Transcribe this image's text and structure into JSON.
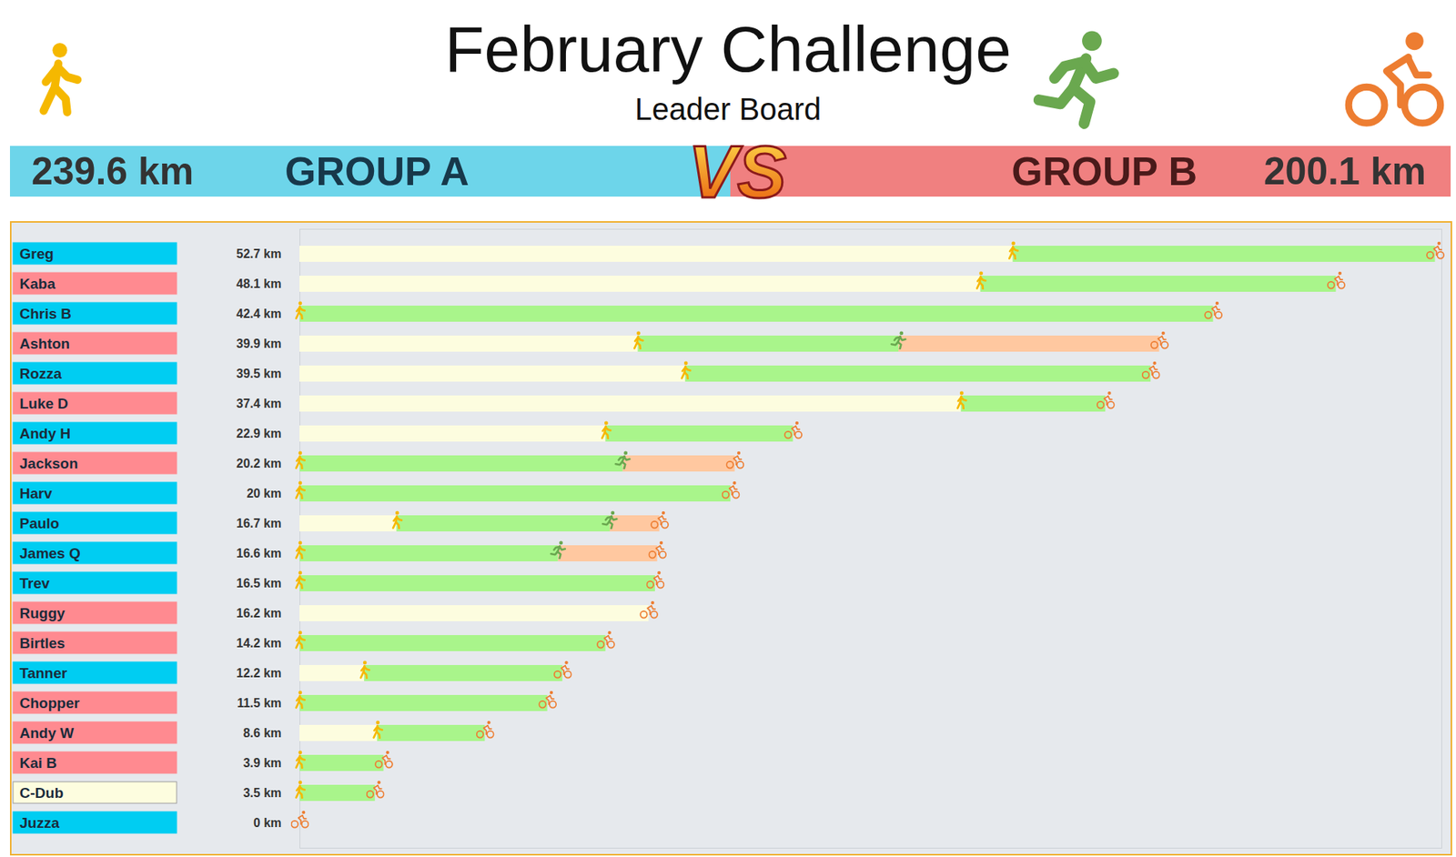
{
  "chart_data": {
    "type": "bar",
    "orientation": "horizontal",
    "stacked": true,
    "title": "February Challenge",
    "subtitle": "Leader Board",
    "versus": "VS",
    "groups": [
      {
        "name": "GROUP A",
        "total": 239.6,
        "total_label": "239.6 km",
        "color": "#00cdf2"
      },
      {
        "name": "GROUP B",
        "total": 200.1,
        "total_label": "200.1 km",
        "color": "#ff8a90"
      }
    ],
    "categories": [
      "Greg",
      "Kaba",
      "Chris B",
      "Ashton",
      "Rozza",
      "Luke D",
      "Andy H",
      "Jackson",
      "Harv",
      "Paulo",
      "James Q",
      "Trev",
      "Ruggy",
      "Birtles",
      "Tanner",
      "Chopper",
      "Andy W",
      "Kai B",
      "C-Dub",
      "Juzza"
    ],
    "category_groups": [
      "GROUP A",
      "GROUP B",
      "GROUP A",
      "GROUP B",
      "GROUP A",
      "GROUP B",
      "GROUP A",
      "GROUP B",
      "GROUP A",
      "GROUP A",
      "GROUP A",
      "GROUP A",
      "GROUP B",
      "GROUP B",
      "GROUP A",
      "GROUP B",
      "GROUP B",
      "GROUP B",
      null,
      "GROUP A"
    ],
    "series": [
      {
        "color": "#fdfddf",
        "values": [
          33.1,
          31.6,
          0,
          15.7,
          17.9,
          30.7,
          14.2,
          0,
          0,
          4.5,
          0,
          0,
          16.2,
          0,
          3.0,
          0,
          3.6,
          0,
          0,
          0
        ]
      },
      {
        "color": "#a9f58b",
        "values": [
          19.6,
          16.5,
          42.4,
          12.1,
          21.6,
          6.7,
          8.7,
          15.0,
          20,
          9.9,
          12.0,
          16.5,
          0,
          14.2,
          9.2,
          11.5,
          5.0,
          3.9,
          3.5,
          0
        ]
      },
      {
        "color": "#ffc8a0",
        "values": [
          0,
          0,
          0,
          12.1,
          0,
          0,
          0,
          5.2,
          0,
          2.3,
          4.6,
          0,
          0,
          0,
          0,
          0,
          0,
          0,
          0,
          0
        ]
      }
    ],
    "totals": [
      52.7,
      48.1,
      42.4,
      39.9,
      39.5,
      37.4,
      22.9,
      20.2,
      20,
      16.7,
      16.6,
      16.5,
      16.2,
      14.2,
      12.2,
      11.5,
      8.6,
      3.9,
      3.5,
      0
    ],
    "total_labels": [
      "52.7 km",
      "48.1 km",
      "42.4 km",
      "39.9 km",
      "39.5 km",
      "37.4 km",
      "22.9 km",
      "20.2 km",
      "20 km",
      "16.7 km",
      "16.6 km",
      "16.5 km",
      "16.2 km",
      "14.2 km",
      "12.2 km",
      "11.5 km",
      "8.6 km",
      "3.9 km",
      "3.5 km",
      "0 km"
    ],
    "xlim": [
      0,
      53
    ],
    "tick_labels": false
  }
}
